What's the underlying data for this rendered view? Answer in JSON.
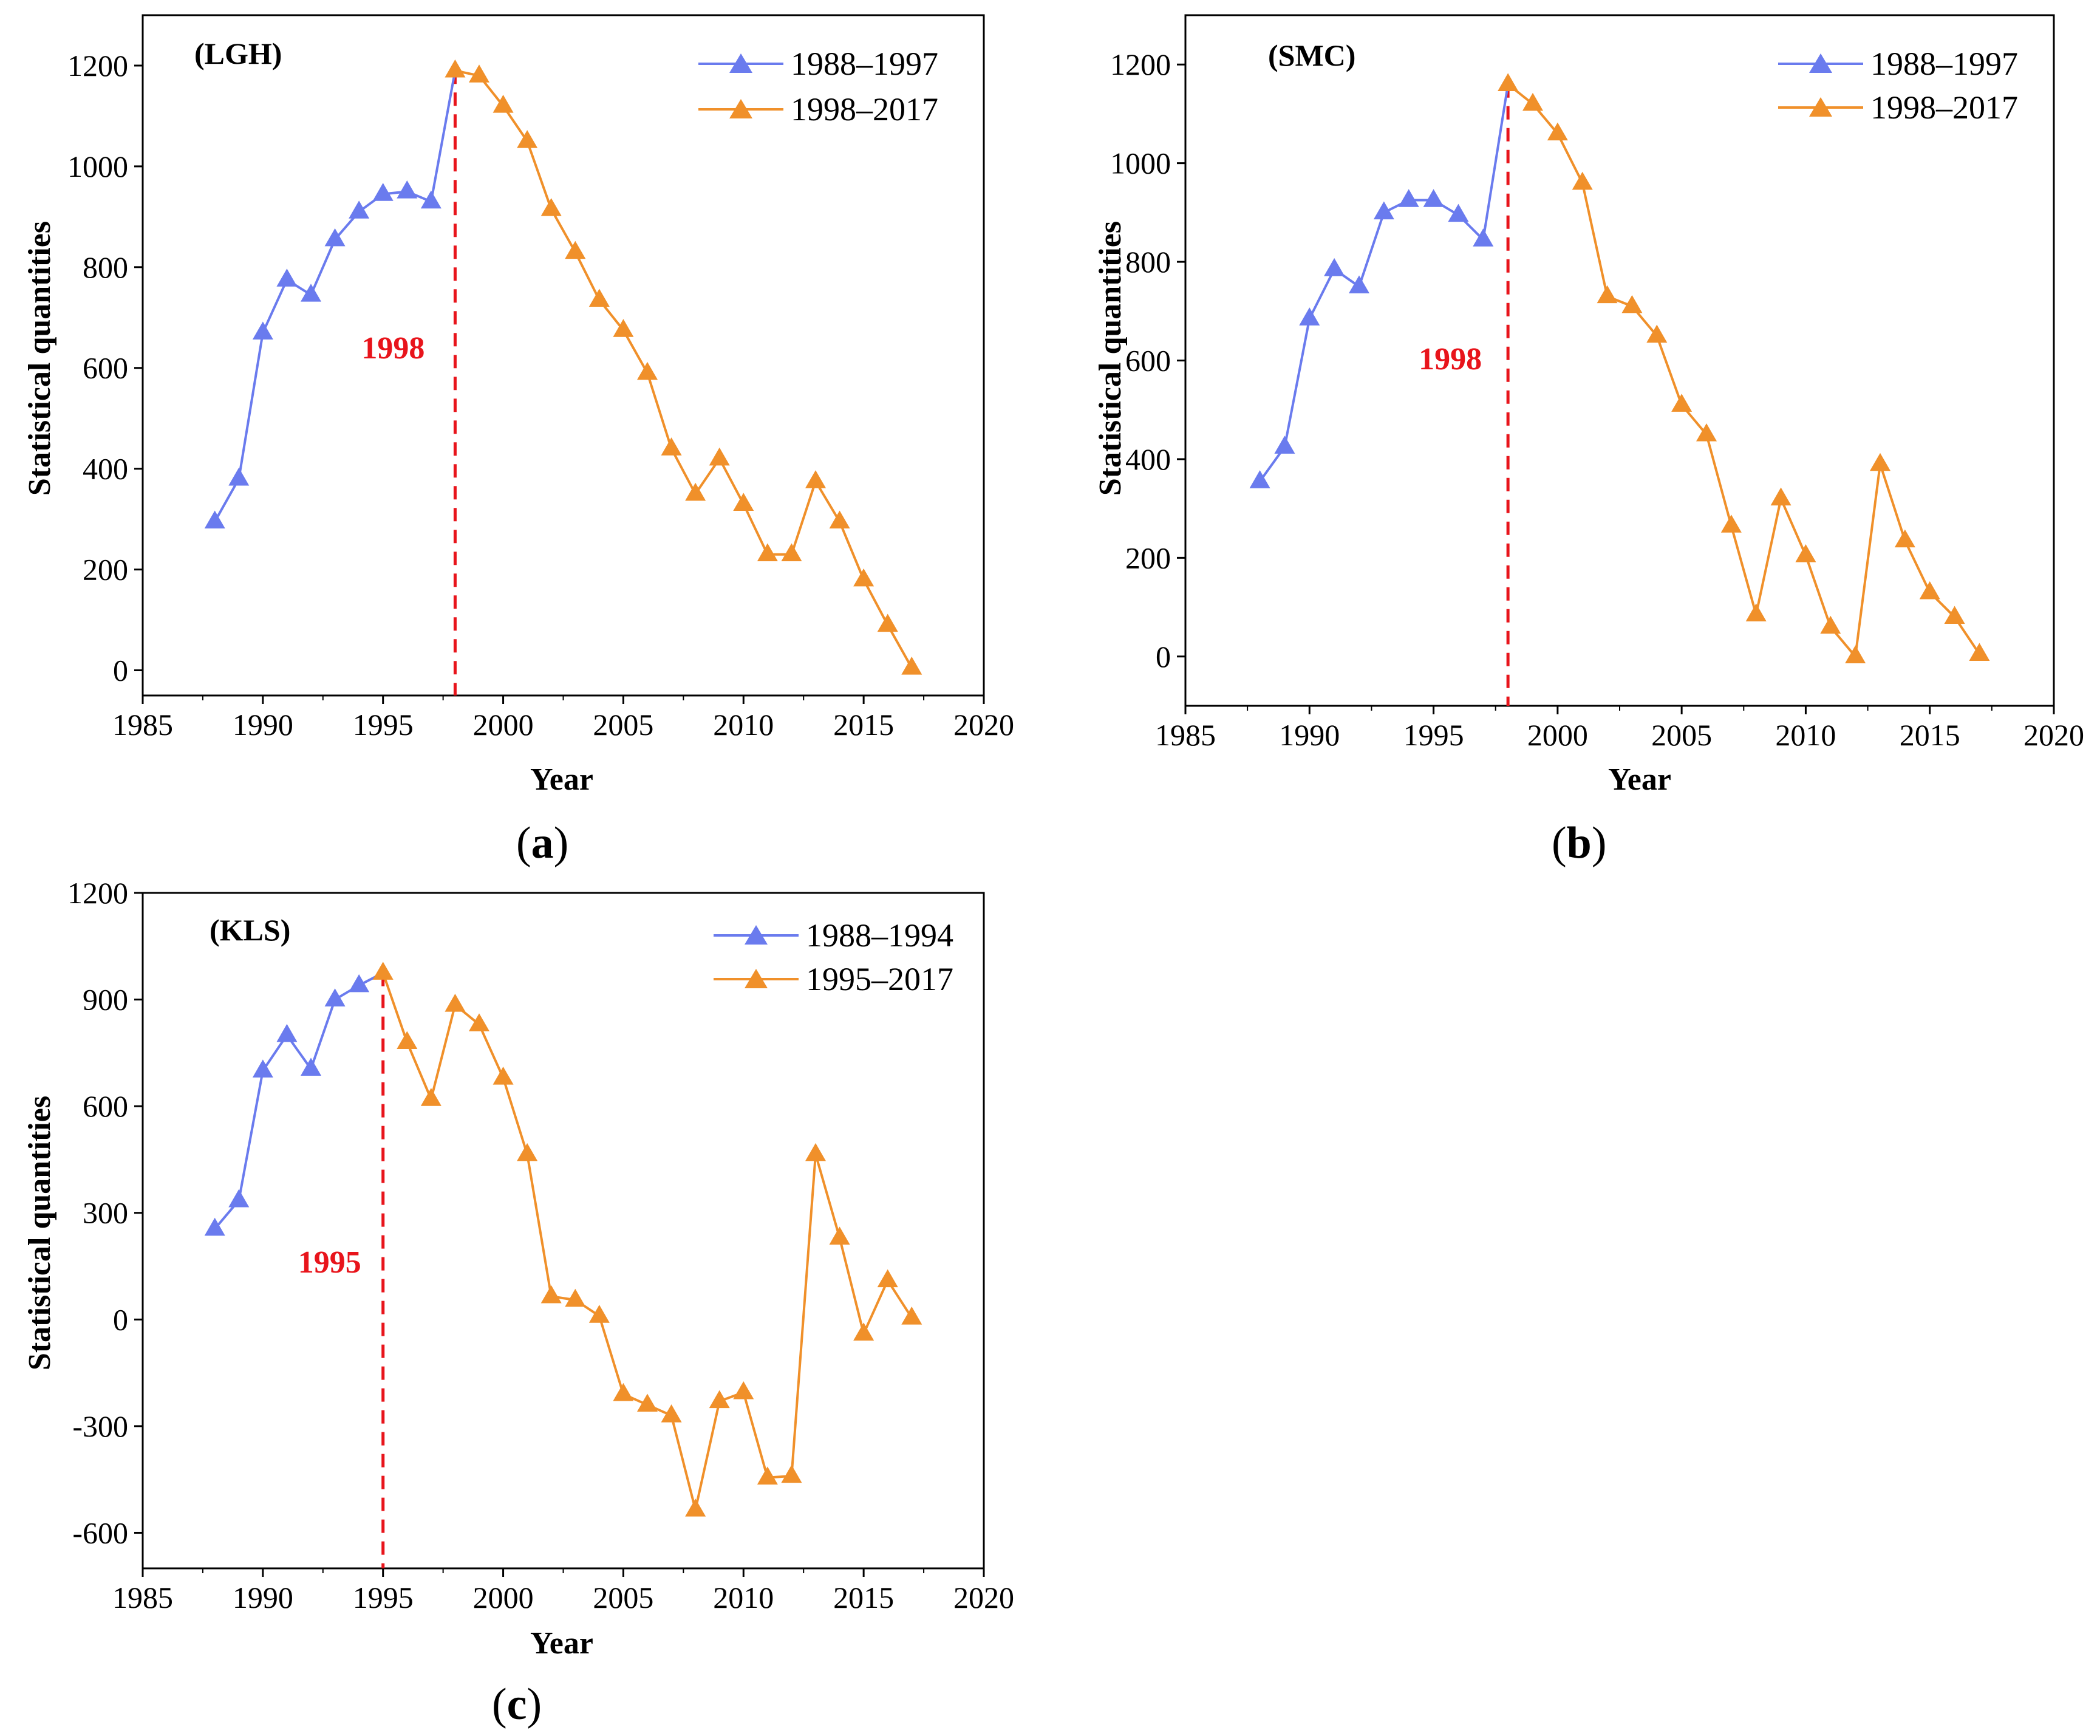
{
  "colors": {
    "series_before": "#6A7BEE",
    "series_after": "#F0902A",
    "change_line": "#E8141B"
  },
  "chart_data": [
    {
      "type": "line",
      "panel_letter": "a",
      "title": "(LGH)",
      "xlabel": "Year",
      "ylabel": "Statistical quantities",
      "xlim": [
        1985,
        2020
      ],
      "ylim": [
        -50,
        1300
      ],
      "xticks": [
        1985,
        1990,
        1995,
        2000,
        2005,
        2010,
        2015,
        2020
      ],
      "yticks": [
        0,
        200,
        400,
        600,
        800,
        1000,
        1200
      ],
      "change_year": 1998,
      "change_label": "1998",
      "series": [
        {
          "name": "1988–1997",
          "x": [
            1988,
            1989,
            1990,
            1991,
            1992,
            1993,
            1994,
            1995,
            1996,
            1997,
            1998
          ],
          "values": [
            295,
            380,
            670,
            775,
            745,
            855,
            910,
            945,
            950,
            930,
            1190
          ]
        },
        {
          "name": "1998–2017",
          "x": [
            1998,
            1999,
            2000,
            2001,
            2002,
            2003,
            2004,
            2005,
            2006,
            2007,
            2008,
            2009,
            2010,
            2011,
            2012,
            2013,
            2014,
            2015,
            2016,
            2017
          ],
          "values": [
            1190,
            1180,
            1120,
            1050,
            915,
            830,
            735,
            675,
            590,
            440,
            350,
            420,
            330,
            230,
            230,
            375,
            295,
            180,
            90,
            5
          ]
        }
      ]
    },
    {
      "type": "line",
      "panel_letter": "b",
      "title": "(SMC)",
      "xlabel": "Year",
      "ylabel": "Statistical quantities",
      "xlim": [
        1985,
        2020
      ],
      "ylim": [
        -100,
        1300
      ],
      "xticks": [
        1985,
        1990,
        1995,
        2000,
        2005,
        2010,
        2015,
        2020
      ],
      "yticks": [
        0,
        200,
        400,
        600,
        800,
        1000,
        1200
      ],
      "change_year": 1998,
      "change_label": "1998",
      "series": [
        {
          "name": "1988–1997",
          "x": [
            1988,
            1989,
            1990,
            1991,
            1992,
            1993,
            1994,
            1995,
            1996,
            1997,
            1998
          ],
          "values": [
            355,
            425,
            685,
            785,
            750,
            900,
            925,
            925,
            895,
            845,
            1160
          ]
        },
        {
          "name": "1998–2017",
          "x": [
            1998,
            1999,
            2000,
            2001,
            2002,
            2003,
            2004,
            2005,
            2006,
            2007,
            2008,
            2009,
            2010,
            2011,
            2012,
            2013,
            2014,
            2015,
            2016,
            2017
          ],
          "values": [
            1160,
            1120,
            1060,
            960,
            730,
            710,
            650,
            510,
            450,
            265,
            85,
            320,
            205,
            60,
            0,
            390,
            235,
            130,
            80,
            5
          ]
        }
      ]
    },
    {
      "type": "line",
      "panel_letter": "c",
      "title": "(KLS)",
      "xlabel": "Year",
      "ylabel": "Statistical quantities",
      "xlim": [
        1985,
        2020
      ],
      "ylim": [
        -700,
        1200
      ],
      "xticks": [
        1985,
        1990,
        1995,
        2000,
        2005,
        2010,
        2015,
        2020
      ],
      "yticks": [
        -600,
        -300,
        0,
        300,
        600,
        900,
        1200
      ],
      "change_year": 1995,
      "change_label": "1995",
      "series": [
        {
          "name": "1988–1994",
          "x": [
            1988,
            1989,
            1990,
            1991,
            1992,
            1993,
            1994,
            1995
          ],
          "values": [
            255,
            335,
            700,
            800,
            705,
            900,
            940,
            975
          ]
        },
        {
          "name": "1995–2017",
          "x": [
            1995,
            1996,
            1997,
            1998,
            1999,
            2000,
            2001,
            2002,
            2003,
            2004,
            2005,
            2006,
            2007,
            2008,
            2009,
            2010,
            2011,
            2012,
            2013,
            2014,
            2015,
            2016,
            2017
          ],
          "values": [
            975,
            780,
            620,
            885,
            830,
            680,
            465,
            65,
            55,
            10,
            -210,
            -240,
            -270,
            -535,
            -230,
            -205,
            -445,
            -440,
            465,
            230,
            -40,
            110,
            5
          ]
        }
      ]
    }
  ]
}
